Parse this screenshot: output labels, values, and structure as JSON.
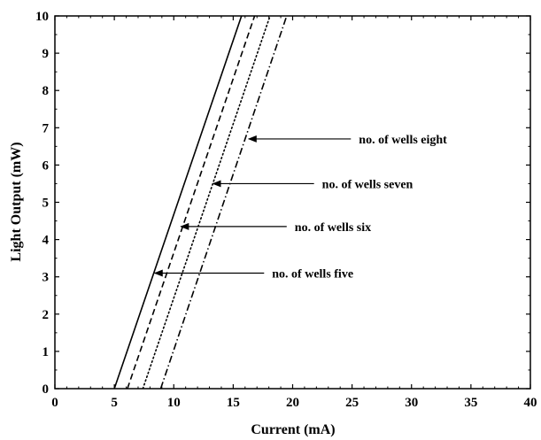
{
  "chart_data": {
    "type": "line",
    "xlabel": "Current (mA)",
    "ylabel": "Light Output (mW)",
    "xlim": [
      0,
      40
    ],
    "ylim": [
      0,
      10
    ],
    "x_ticks": [
      "0",
      "5",
      "10",
      "15",
      "20",
      "25",
      "30",
      "35",
      "40"
    ],
    "y_ticks": [
      "0",
      "1",
      "2",
      "3",
      "4",
      "5",
      "6",
      "7",
      "8",
      "9",
      "10"
    ],
    "grid": false,
    "series": [
      {
        "style": "solid",
        "x": [
          5.0,
          15.7
        ],
        "y": [
          0,
          10
        ]
      },
      {
        "style": "dashed",
        "x": [
          6.1,
          16.8
        ],
        "y": [
          0,
          10
        ]
      },
      {
        "style": "dotted",
        "x": [
          7.4,
          18.1
        ],
        "y": [
          0,
          10
        ]
      },
      {
        "style": "dashdot",
        "x": [
          8.9,
          19.5
        ],
        "y": [
          0,
          10
        ]
      }
    ],
    "annotations": [
      {
        "text": "no. of wells eight",
        "target": {
          "x": 16.3,
          "y": 6.7
        },
        "arrow_from_x": 24.9
      },
      {
        "text": "no. of wells seven",
        "target": {
          "x": 13.3,
          "y": 5.5
        },
        "arrow_from_x": 21.8
      },
      {
        "text": "no. of wells six",
        "target": {
          "x": 10.6,
          "y": 4.35
        },
        "arrow_from_x": 19.5
      },
      {
        "text": "no. of wells five",
        "target": {
          "x": 8.4,
          "y": 3.1
        },
        "arrow_from_x": 17.6
      }
    ]
  }
}
